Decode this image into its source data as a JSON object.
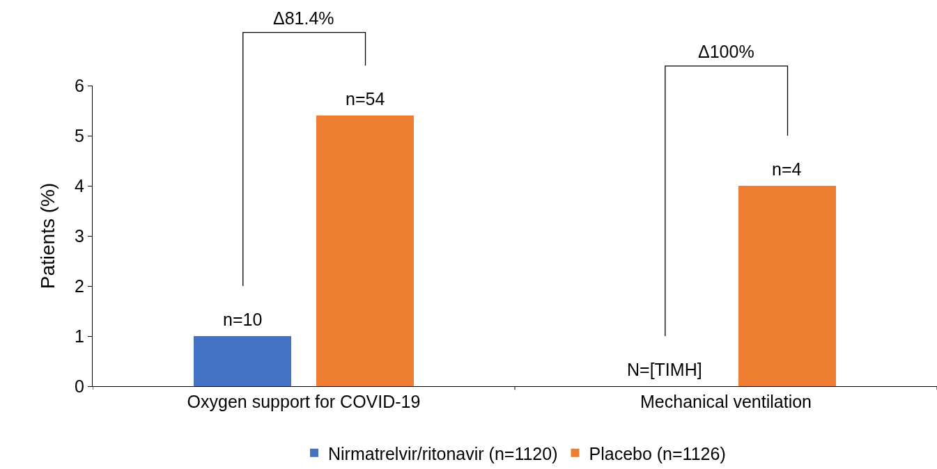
{
  "chart_data": {
    "type": "bar",
    "ylabel": "Patients (%)",
    "categories": [
      "Oxygen support for COVID-19",
      "Mechanical ventilation"
    ],
    "series": [
      {
        "name": "Nirmatrelvir/ritonavir (n=1120)",
        "color": "#4472c4",
        "values": [
          1.0,
          0
        ]
      },
      {
        "name": "Placebo (n=1126)",
        "color": "#ed7d31",
        "values": [
          5.4,
          4.0
        ]
      }
    ],
    "ylim": [
      0,
      6
    ],
    "yticks": [
      0,
      1,
      2,
      3,
      4,
      5,
      6
    ],
    "grid": false,
    "legend": "bottom",
    "annotations": [
      "Δ81.4%",
      "Δ100%",
      "n=10",
      "n=54",
      "N=[TIMH]",
      "n=4"
    ]
  }
}
